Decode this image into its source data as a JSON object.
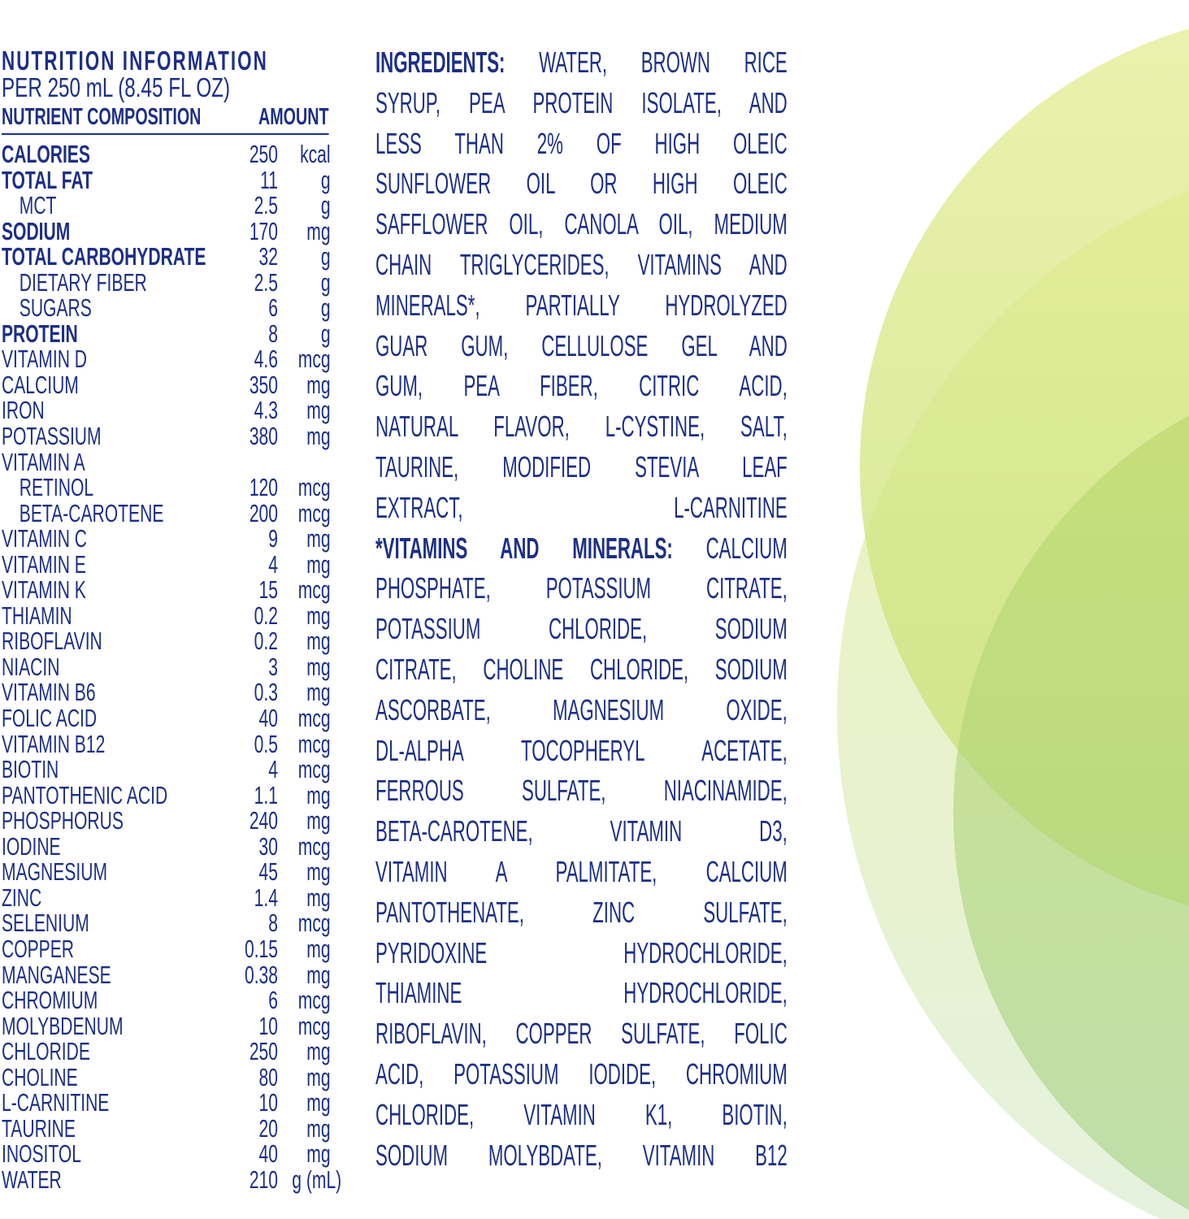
{
  "colors": {
    "text": "#1c2f86",
    "circle_light": "#e8ef9f",
    "circle_mid": "#d5e57a",
    "circle_green": "#9ccf6e"
  },
  "nutrition": {
    "title": "NUTRITION INFORMATION",
    "serving": "PER 250 mL (8.45 FL OZ)",
    "col_nutrient": "NUTRIENT COMPOSITION",
    "col_amount": "AMOUNT",
    "rows": [
      {
        "name": "CALORIES",
        "amount": "250",
        "unit": "kcal",
        "bold": true
      },
      {
        "name": "TOTAL FAT",
        "amount": "11",
        "unit": "g",
        "bold": true
      },
      {
        "name": "MCT",
        "amount": "2.5",
        "unit": "g",
        "indent": true
      },
      {
        "name": "SODIUM",
        "amount": "170",
        "unit": "mg",
        "bold": true
      },
      {
        "name": "TOTAL CARBOHYDRATE",
        "amount": "32",
        "unit": "g",
        "bold": true
      },
      {
        "name": "DIETARY FIBER",
        "amount": "2.5",
        "unit": "g",
        "indent": true
      },
      {
        "name": "SUGARS",
        "amount": "6",
        "unit": "g",
        "indent": true
      },
      {
        "name": "PROTEIN",
        "amount": "8",
        "unit": "g",
        "bold": true
      },
      {
        "name": "VITAMIN D",
        "amount": "4.6",
        "unit": "mcg"
      },
      {
        "name": "CALCIUM",
        "amount": "350",
        "unit": "mg"
      },
      {
        "name": "IRON",
        "amount": "4.3",
        "unit": "mg"
      },
      {
        "name": "POTASSIUM",
        "amount": "380",
        "unit": "mg"
      },
      {
        "name": "VITAMIN A",
        "amount": "",
        "unit": ""
      },
      {
        "name": "RETINOL",
        "amount": "120",
        "unit": "mcg",
        "indent": true
      },
      {
        "name": "BETA-CAROTENE",
        "amount": "200",
        "unit": "mcg",
        "indent": true
      },
      {
        "name": "VITAMIN C",
        "amount": "9",
        "unit": "mg"
      },
      {
        "name": "VITAMIN E",
        "amount": "4",
        "unit": "mg"
      },
      {
        "name": "VITAMIN K",
        "amount": "15",
        "unit": "mcg"
      },
      {
        "name": "THIAMIN",
        "amount": "0.2",
        "unit": "mg"
      },
      {
        "name": "RIBOFLAVIN",
        "amount": "0.2",
        "unit": "mg"
      },
      {
        "name": "NIACIN",
        "amount": "3",
        "unit": "mg"
      },
      {
        "name": "VITAMIN B6",
        "amount": "0.3",
        "unit": "mg"
      },
      {
        "name": "FOLIC ACID",
        "amount": "40",
        "unit": "mcg"
      },
      {
        "name": "VITAMIN B12",
        "amount": "0.5",
        "unit": "mcg"
      },
      {
        "name": "BIOTIN",
        "amount": "4",
        "unit": "mcg"
      },
      {
        "name": "PANTOTHENIC ACID",
        "amount": "1.1",
        "unit": "mg"
      },
      {
        "name": "PHOSPHORUS",
        "amount": "240",
        "unit": "mg"
      },
      {
        "name": "IODINE",
        "amount": "30",
        "unit": "mcg"
      },
      {
        "name": "MAGNESIUM",
        "amount": "45",
        "unit": "mg"
      },
      {
        "name": "ZINC",
        "amount": "1.4",
        "unit": "mg"
      },
      {
        "name": "SELENIUM",
        "amount": "8",
        "unit": "mcg"
      },
      {
        "name": "COPPER",
        "amount": "0.15",
        "unit": "mg"
      },
      {
        "name": "MANGANESE",
        "amount": "0.38",
        "unit": "mg"
      },
      {
        "name": "CHROMIUM",
        "amount": "6",
        "unit": "mcg"
      },
      {
        "name": "MOLYBDENUM",
        "amount": "10",
        "unit": "mcg"
      },
      {
        "name": "CHLORIDE",
        "amount": "250",
        "unit": "mg"
      },
      {
        "name": "CHOLINE",
        "amount": "80",
        "unit": "mg"
      },
      {
        "name": "L-CARNITINE",
        "amount": "10",
        "unit": "mg"
      },
      {
        "name": "TAURINE",
        "amount": "20",
        "unit": "mg"
      },
      {
        "name": "INOSITOL",
        "amount": "40",
        "unit": "mg"
      },
      {
        "name": "WATER",
        "amount": "210",
        "unit": "g (mL)"
      }
    ]
  },
  "ingredients": {
    "lines": [
      {
        "bold": "INGREDIENTS:",
        "text": " WATER, BROWN RICE"
      },
      {
        "bold": "",
        "text": "SYRUP, PEA PROTEIN ISOLATE, AND"
      },
      {
        "bold": "",
        "text": "LESS THAN 2% OF HIGH OLEIC"
      },
      {
        "bold": "",
        "text": "SUNFLOWER OIL OR HIGH OLEIC"
      },
      {
        "bold": "",
        "text": "SAFFLOWER OIL, CANOLA OIL, MEDIUM"
      },
      {
        "bold": "",
        "text": "CHAIN TRIGLYCERIDES, VITAMINS AND"
      },
      {
        "bold": "",
        "text": "MINERALS*, PARTIALLY HYDROLYZED"
      },
      {
        "bold": "",
        "text": "GUAR GUM, CELLULOSE GEL AND"
      },
      {
        "bold": "",
        "text": "GUM, PEA FIBER, CITRIC ACID,"
      },
      {
        "bold": "",
        "text": "NATURAL FLAVOR, L-CYSTINE, SALT,"
      },
      {
        "bold": "",
        "text": "TAURINE, MODIFIED STEVIA LEAF"
      },
      {
        "bold": "",
        "text": "EXTRACT, L-CARNITINE"
      },
      {
        "bold": "*VITAMINS AND MINERALS:",
        "text": " CALCIUM"
      },
      {
        "bold": "",
        "text": "PHOSPHATE, POTASSIUM CITRATE,"
      },
      {
        "bold": "",
        "text": "POTASSIUM CHLORIDE, SODIUM"
      },
      {
        "bold": "",
        "text": "CITRATE, CHOLINE CHLORIDE, SODIUM"
      },
      {
        "bold": "",
        "text": "ASCORBATE, MAGNESIUM OXIDE,"
      },
      {
        "bold": "",
        "text": "DL-ALPHA TOCOPHERYL ACETATE,"
      },
      {
        "bold": "",
        "text": "FERROUS SULFATE, NIACINAMIDE,"
      },
      {
        "bold": "",
        "text": "BETA-CAROTENE, VITAMIN D3,"
      },
      {
        "bold": "",
        "text": "VITAMIN A PALMITATE, CALCIUM"
      },
      {
        "bold": "",
        "text": "PANTOTHENATE, ZINC SULFATE,"
      },
      {
        "bold": "",
        "text": "PYRIDOXINE HYDROCHLORIDE,"
      },
      {
        "bold": "",
        "text": "THIAMINE HYDROCHLORIDE,"
      },
      {
        "bold": "",
        "text": "RIBOFLAVIN, COPPER SULFATE, FOLIC"
      },
      {
        "bold": "",
        "text": "ACID, POTASSIUM IODIDE, CHROMIUM"
      },
      {
        "bold": "",
        "text": "CHLORIDE, VITAMIN K1, BIOTIN,"
      },
      {
        "bold": "",
        "text": "SODIUM MOLYBDATE, VITAMIN B12"
      }
    ]
  }
}
